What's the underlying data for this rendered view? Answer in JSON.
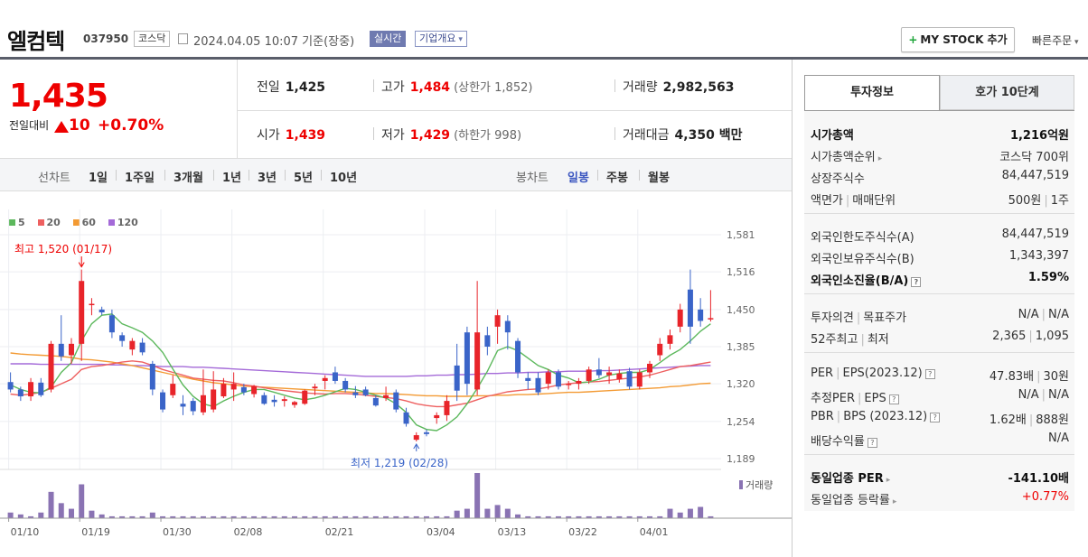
{
  "header": {
    "stock_name": "엘컴텍",
    "stock_code": "037950",
    "market": "코스닥",
    "datetime": "2024.04.05 10:07",
    "basis": "기준(장중)",
    "realtime": "실시간",
    "company_overview": "기업개요",
    "my_stock": "MY STOCK 추가",
    "quick_order": "빠른주문"
  },
  "price": {
    "current": "1,435",
    "compare_label": "전일대비",
    "change": "10",
    "change_pct": "+0.70%",
    "prev_label": "전일",
    "prev": "1,425",
    "high_label": "고가",
    "high": "1,484",
    "upper_limit": "(상한가 1,852)",
    "volume_label": "거래량",
    "volume": "2,982,563",
    "open_label": "시가",
    "open": "1,439",
    "low_label": "저가",
    "low": "1,429",
    "lower_limit": "(하한가 998)",
    "amount_label": "거래대금",
    "amount": "4,350 백만"
  },
  "period_tabs": {
    "line_label": "선차트",
    "line": [
      "1일",
      "1주일",
      "3개월",
      "1년",
      "3년",
      "5년",
      "10년"
    ],
    "candle_label": "봉차트",
    "candle": [
      "일봉",
      "주봉",
      "월봉"
    ],
    "active": "일봉"
  },
  "chart_data": {
    "type": "candlestick",
    "title": "",
    "ylim": [
      1189,
      1581
    ],
    "yticks": [
      "1,581",
      "1,516",
      "1,450",
      "1,385",
      "1,320",
      "1,254",
      "1,189"
    ],
    "xticks": [
      "01/10",
      "01/19",
      "01/30",
      "02/08",
      "02/21",
      "03/04",
      "03/13",
      "03/22",
      "04/01"
    ],
    "legend": [
      "5",
      "20",
      "60",
      "120"
    ],
    "colors": {
      "up": "#e8242a",
      "down": "#3a64c8",
      "ma5": "#5cb85c",
      "ma20": "#ee6060",
      "ma60": "#f39a33",
      "ma120": "#a46ad8",
      "volume": "#8a73b3"
    },
    "annotations": {
      "high": "최고 1,520 (01/17)",
      "low": "최저 1,219 (02/28)"
    },
    "volume_label": "거래량",
    "candles": [
      [
        1323,
        1340,
        1305,
        1310
      ],
      [
        1310,
        1315,
        1290,
        1298
      ],
      [
        1298,
        1330,
        1290,
        1323
      ],
      [
        1322,
        1330,
        1297,
        1300
      ],
      [
        1310,
        1395,
        1305,
        1390
      ],
      [
        1390,
        1440,
        1360,
        1368
      ],
      [
        1370,
        1400,
        1355,
        1390
      ],
      [
        1390,
        1520,
        1360,
        1500
      ],
      [
        1460,
        1470,
        1440,
        1460
      ],
      [
        1450,
        1455,
        1440,
        1445
      ],
      [
        1440,
        1450,
        1400,
        1410
      ],
      [
        1405,
        1410,
        1385,
        1395
      ],
      [
        1380,
        1400,
        1370,
        1395
      ],
      [
        1392,
        1400,
        1370,
        1375
      ],
      [
        1355,
        1360,
        1300,
        1310
      ],
      [
        1305,
        1310,
        1270,
        1275
      ],
      [
        1300,
        1335,
        1295,
        1320
      ],
      [
        1285,
        1300,
        1265,
        1280
      ],
      [
        1290,
        1295,
        1265,
        1272
      ],
      [
        1270,
        1345,
        1265,
        1300
      ],
      [
        1275,
        1342,
        1270,
        1310
      ],
      [
        1298,
        1330,
        1295,
        1320
      ],
      [
        1310,
        1340,
        1290,
        1320
      ],
      [
        1314,
        1320,
        1300,
        1305
      ],
      [
        1302,
        1318,
        1296,
        1316
      ],
      [
        1300,
        1305,
        1283,
        1285
      ],
      [
        1292,
        1300,
        1280,
        1288
      ],
      [
        1290,
        1298,
        1280,
        1293
      ],
      [
        1283,
        1290,
        1278,
        1288
      ],
      [
        1285,
        1310,
        1283,
        1308
      ],
      [
        1312,
        1320,
        1300,
        1315
      ],
      [
        1325,
        1335,
        1310,
        1330
      ],
      [
        1340,
        1350,
        1320,
        1325
      ],
      [
        1325,
        1330,
        1305,
        1310
      ],
      [
        1305,
        1316,
        1295,
        1300
      ],
      [
        1310,
        1315,
        1298,
        1300
      ],
      [
        1295,
        1300,
        1280,
        1282
      ],
      [
        1295,
        1315,
        1290,
        1300
      ],
      [
        1305,
        1310,
        1270,
        1275
      ],
      [
        1270,
        1278,
        1245,
        1250
      ],
      [
        1222,
        1235,
        1219,
        1230
      ],
      [
        1235,
        1240,
        1228,
        1232
      ],
      [
        1260,
        1270,
        1250,
        1265
      ],
      [
        1265,
        1300,
        1255,
        1290
      ],
      [
        1352,
        1390,
        1290,
        1308
      ],
      [
        1410,
        1420,
        1300,
        1320
      ],
      [
        1310,
        1500,
        1300,
        1410
      ],
      [
        1405,
        1420,
        1370,
        1385
      ],
      [
        1420,
        1450,
        1390,
        1440
      ],
      [
        1430,
        1440,
        1380,
        1410
      ],
      [
        1395,
        1400,
        1330,
        1340
      ],
      [
        1330,
        1340,
        1310,
        1325
      ],
      [
        1330,
        1340,
        1300,
        1305
      ],
      [
        1320,
        1345,
        1310,
        1340
      ],
      [
        1340,
        1345,
        1310,
        1315
      ],
      [
        1320,
        1325,
        1310,
        1320
      ],
      [
        1320,
        1330,
        1310,
        1325
      ],
      [
        1325,
        1350,
        1320,
        1345
      ],
      [
        1345,
        1365,
        1330,
        1335
      ],
      [
        1335,
        1350,
        1320,
        1340
      ],
      [
        1328,
        1345,
        1322,
        1338
      ],
      [
        1342,
        1348,
        1310,
        1315
      ],
      [
        1315,
        1345,
        1310,
        1340
      ],
      [
        1340,
        1360,
        1330,
        1355
      ],
      [
        1370,
        1400,
        1360,
        1390
      ],
      [
        1390,
        1415,
        1380,
        1405
      ],
      [
        1420,
        1460,
        1410,
        1450
      ],
      [
        1485,
        1520,
        1390,
        1420
      ],
      [
        1450,
        1470,
        1420,
        1430
      ],
      [
        1434,
        1484,
        1429,
        1435
      ]
    ],
    "ma5": [
      1318,
      1310,
      1305,
      1304,
      1314,
      1340,
      1357,
      1395,
      1425,
      1440,
      1442,
      1425,
      1418,
      1410,
      1395,
      1375,
      1346,
      1318,
      1298,
      1285,
      1280,
      1290,
      1298,
      1305,
      1310,
      1310,
      1305,
      1300,
      1295,
      1292,
      1295,
      1300,
      1306,
      1312,
      1310,
      1305,
      1300,
      1295,
      1285,
      1270,
      1248,
      1240,
      1238,
      1248,
      1262,
      1285,
      1312,
      1342,
      1378,
      1385,
      1378,
      1365,
      1352,
      1345,
      1335,
      1330,
      1322,
      1323,
      1328,
      1335,
      1338,
      1340,
      1340,
      1345,
      1357,
      1370,
      1380,
      1395,
      1412,
      1425
    ],
    "ma20": [
      1302,
      1300,
      1302,
      1305,
      1312,
      1320,
      1328,
      1345,
      1350,
      1352,
      1355,
      1358,
      1360,
      1358,
      1352,
      1345,
      1340,
      1335,
      1330,
      1328,
      1326,
      1325,
      1322,
      1318,
      1316,
      1313,
      1310,
      1308,
      1306,
      1304,
      1303,
      1302,
      1303,
      1303,
      1302,
      1300,
      1298,
      1296,
      1294,
      1290,
      1285,
      1282,
      1280,
      1280,
      1283,
      1286,
      1292,
      1298,
      1302,
      1306,
      1308,
      1310,
      1311,
      1314,
      1318,
      1320,
      1322,
      1323,
      1324,
      1326,
      1328,
      1330,
      1332,
      1335,
      1340,
      1345,
      1350,
      1352,
      1355,
      1358
    ],
    "ma60": [
      1374,
      1372,
      1371,
      1370,
      1369,
      1368,
      1366,
      1363,
      1362,
      1360,
      1358,
      1355,
      1352,
      1348,
      1344,
      1340,
      1336,
      1332,
      1328,
      1325,
      1322,
      1320,
      1318,
      1316,
      1315,
      1314,
      1313,
      1312,
      1311,
      1310,
      1309,
      1308,
      1307,
      1306,
      1305,
      1304,
      1303,
      1303,
      1302,
      1301,
      1300,
      1299,
      1299,
      1298,
      1298,
      1298,
      1299,
      1299,
      1300,
      1300,
      1301,
      1301,
      1302,
      1303,
      1304,
      1305,
      1305,
      1306,
      1307,
      1308,
      1309,
      1310,
      1311,
      1312,
      1313,
      1315,
      1316,
      1318,
      1320,
      1321
    ],
    "ma120": [
      1355,
      1355,
      1355,
      1354,
      1354,
      1354,
      1354,
      1354,
      1354,
      1354,
      1353,
      1353,
      1352,
      1352,
      1351,
      1350,
      1350,
      1350,
      1349,
      1349,
      1348,
      1347,
      1346,
      1345,
      1344,
      1343,
      1342,
      1341,
      1340,
      1339,
      1338,
      1337,
      1336,
      1335,
      1334,
      1333,
      1333,
      1333,
      1333,
      1333,
      1334,
      1334,
      1335,
      1335,
      1336,
      1336,
      1337,
      1338,
      1338,
      1339,
      1339,
      1340,
      1340,
      1341,
      1341,
      1342,
      1342,
      1342,
      1343,
      1343,
      1344,
      1345,
      1346,
      1347,
      1348,
      1349,
      1350,
      1351,
      1352,
      1352
    ],
    "volume": [
      3,
      2,
      1,
      3,
      14,
      8,
      5,
      18,
      4,
      2,
      1,
      1,
      1,
      1,
      3,
      1,
      1,
      1,
      1,
      1,
      1,
      1,
      1,
      1,
      1,
      1,
      1,
      1,
      1,
      1,
      1,
      1,
      1,
      1,
      1,
      1,
      1,
      1,
      1,
      1,
      1,
      1,
      1,
      1,
      4,
      5,
      24,
      5,
      7,
      5,
      2,
      1,
      1,
      1,
      1,
      1,
      1,
      1,
      1,
      1,
      1,
      1,
      1,
      1,
      1,
      5,
      3,
      5,
      6,
      1
    ]
  },
  "side": {
    "tabs": [
      "투자정보",
      "호가 10단계"
    ],
    "market_cap_label": "시가총액",
    "market_cap": "1,216억원",
    "cap_rank_label": "시가총액순위",
    "cap_rank": "코스닥 700위",
    "shares_label": "상장주식수",
    "shares": "84,447,519",
    "face_label_a": "액면가",
    "face_label_b": "매매단위",
    "face_value": "500원",
    "trade_unit": "1주",
    "foreign_limit_label": "외국인한도주식수(A)",
    "foreign_limit": "84,447,519",
    "foreign_hold_label": "외국인보유주식수(B)",
    "foreign_hold": "1,343,397",
    "foreign_ratio_label": "외국인소진율(B/A)",
    "foreign_ratio": "1.59%",
    "opinion_label_a": "투자의견",
    "opinion_label_b": "목표주가",
    "opinion": "N/A",
    "target": "N/A",
    "w52_label_a": "52주최고",
    "w52_label_b": "최저",
    "w52_high": "2,365",
    "w52_low": "1,095",
    "per_label": "PER",
    "eps_label": "EPS(2023.12)",
    "per": "47.83배",
    "eps": "30원",
    "eper_label": "추정PER",
    "eeps_label": "EPS",
    "eper": "N/A",
    "eeps": "N/A",
    "pbr_label": "PBR",
    "bps_label": "BPS (2023.12)",
    "pbr": "1.62배",
    "bps": "888원",
    "div_label": "배당수익률",
    "div": "N/A",
    "ind_per_label": "동일업종 PER",
    "ind_per": "-141.10배",
    "ind_rate_label": "동일업종 등락률",
    "ind_rate": "+0.77%"
  }
}
